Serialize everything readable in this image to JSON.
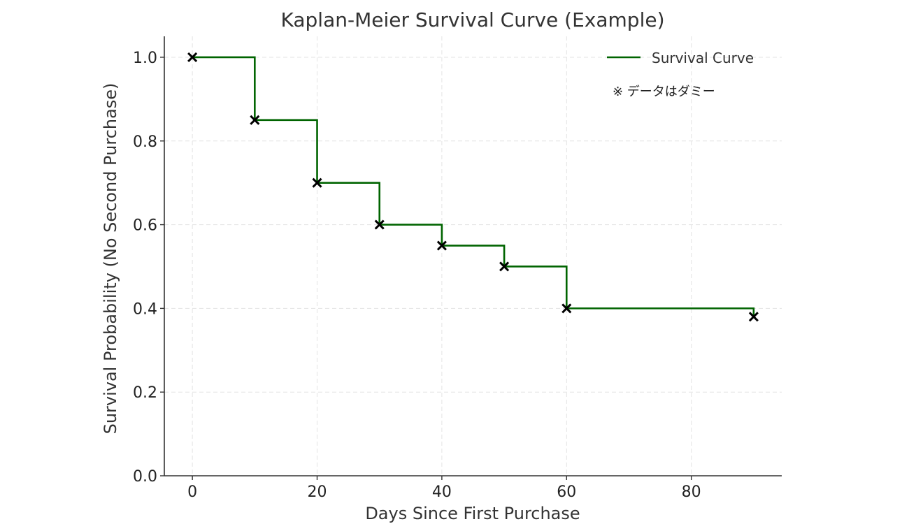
{
  "chart_data": {
    "type": "line",
    "step": "post",
    "title": "Kaplan-Meier Survival Curve (Example)",
    "xlabel": "Days Since First Purchase",
    "ylabel": "Survival Probability (No Second Purchase)",
    "xlim": [
      -4.5,
      94.5
    ],
    "ylim": [
      0,
      1.05
    ],
    "xticks": [
      0,
      20,
      40,
      60,
      80
    ],
    "yticks": [
      0.0,
      0.2,
      0.4,
      0.6,
      0.8,
      1.0
    ],
    "xtick_labels": [
      "0",
      "20",
      "40",
      "60",
      "80"
    ],
    "ytick_labels": [
      "0.0",
      "0.2",
      "0.4",
      "0.6",
      "0.8",
      "1.0"
    ],
    "grid": true,
    "legend_position": "top-right",
    "series": [
      {
        "name": "Survival Curve",
        "color": "#006400",
        "x": [
          0,
          10,
          20,
          30,
          40,
          50,
          60,
          90
        ],
        "y": [
          1.0,
          0.85,
          0.7,
          0.6,
          0.55,
          0.5,
          0.4,
          0.38
        ]
      }
    ],
    "marker_color": "#000000",
    "annotation": "※ データはダミー"
  }
}
